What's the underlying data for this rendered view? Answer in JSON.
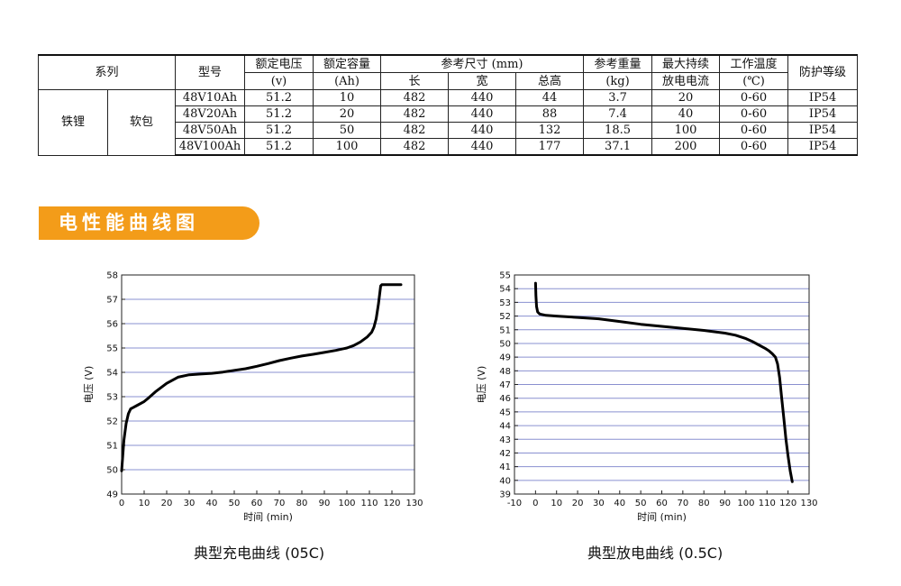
{
  "table": {
    "headers": {
      "series": "系列",
      "model": "型号",
      "voltage": [
        "额定电压",
        "(v)"
      ],
      "capacity": [
        "额定容量",
        "(Ah)"
      ],
      "size": "参考尺寸 (mm)",
      "size_sub": [
        "长",
        "宽",
        "总高"
      ],
      "weight": [
        "参考重量",
        "(kg)"
      ],
      "max_current": [
        "最大持续",
        "放电电流"
      ],
      "temp": [
        "工作温度",
        "(℃)"
      ],
      "ip": "防护等级"
    },
    "series_type": "铁锂",
    "package": "软包",
    "rows": [
      {
        "model": "48V10Ah",
        "voltage": "51.2",
        "capacity": "10",
        "length": "482",
        "width": "440",
        "height": "44",
        "weight": "3.7",
        "current": "20",
        "temp": "0-60",
        "ip": "IP54"
      },
      {
        "model": "48V20Ah",
        "voltage": "51.2",
        "capacity": "20",
        "length": "482",
        "width": "440",
        "height": "88",
        "weight": "7.4",
        "current": "40",
        "temp": "0-60",
        "ip": "IP54"
      },
      {
        "model": "48V50Ah",
        "voltage": "51.2",
        "capacity": "50",
        "length": "482",
        "width": "440",
        "height": "132",
        "weight": "18.5",
        "current": "100",
        "temp": "0-60",
        "ip": "IP54"
      },
      {
        "model": "48V100Ah",
        "voltage": "51.2",
        "capacity": "100",
        "length": "482",
        "width": "440",
        "height": "177",
        "weight": "37.1",
        "current": "200",
        "temp": "0-60",
        "ip": "IP54"
      }
    ]
  },
  "section_title": "电性能曲线图",
  "colors": {
    "banner": "#f39c19",
    "grid": "#8a90d0",
    "curve": "#000000"
  },
  "chart_data": [
    {
      "type": "line",
      "title": "典型充电曲线 (05C)",
      "xlabel": "时间 (min)",
      "ylabel": "电压 (V)",
      "xlim": [
        0,
        130
      ],
      "ylim": [
        49,
        58
      ],
      "xticks": [
        0,
        10,
        20,
        30,
        40,
        50,
        60,
        70,
        80,
        90,
        100,
        110,
        120,
        130
      ],
      "yticks": [
        49,
        50,
        51,
        52,
        53,
        54,
        55,
        56,
        57,
        58
      ],
      "grid": "horizontal",
      "series": [
        {
          "x": [
            0,
            0.5,
            1,
            2,
            3,
            4,
            5,
            7,
            10,
            12,
            15,
            20,
            25,
            30,
            35,
            40,
            45,
            50,
            55,
            60,
            65,
            70,
            75,
            80,
            85,
            90,
            95,
            100,
            103,
            106,
            109,
            111,
            112,
            113,
            114,
            115,
            115.5,
            117,
            120,
            124
          ],
          "y": [
            49.95,
            50.6,
            51.2,
            51.9,
            52.3,
            52.5,
            52.55,
            52.65,
            52.8,
            52.95,
            53.2,
            53.55,
            53.8,
            53.9,
            53.93,
            53.96,
            54.01,
            54.08,
            54.15,
            54.25,
            54.36,
            54.48,
            54.58,
            54.67,
            54.74,
            54.82,
            54.9,
            55.0,
            55.1,
            55.25,
            55.45,
            55.65,
            55.85,
            56.2,
            56.8,
            57.55,
            57.6,
            57.6,
            57.6,
            57.6
          ]
        }
      ]
    },
    {
      "type": "line",
      "title": "典型放电曲线 (0.5C)",
      "xlabel": "时间 (min)",
      "ylabel": "电压 (V)",
      "xlim": [
        -10,
        130
      ],
      "ylim": [
        39,
        55
      ],
      "xticks": [
        -10,
        0,
        10,
        20,
        30,
        40,
        50,
        60,
        70,
        80,
        90,
        100,
        110,
        120,
        130
      ],
      "yticks": [
        39,
        40,
        41,
        42,
        43,
        44,
        45,
        46,
        47,
        48,
        49,
        50,
        51,
        52,
        53,
        54,
        55
      ],
      "grid": "horizontal",
      "series": [
        {
          "x": [
            0,
            0.2,
            0.5,
            1,
            2,
            5,
            10,
            20,
            30,
            40,
            50,
            60,
            70,
            80,
            90,
            95,
            100,
            103,
            106,
            109,
            111,
            112.5,
            114,
            115,
            116,
            117,
            118,
            119,
            120,
            121,
            122
          ],
          "y": [
            54.4,
            53.5,
            52.7,
            52.3,
            52.15,
            52.05,
            52.0,
            51.9,
            51.8,
            51.6,
            51.4,
            51.25,
            51.1,
            50.95,
            50.75,
            50.6,
            50.35,
            50.15,
            49.9,
            49.65,
            49.45,
            49.25,
            49.0,
            48.5,
            47.5,
            46.0,
            44.5,
            43.0,
            41.8,
            40.7,
            39.9
          ]
        }
      ]
    }
  ]
}
